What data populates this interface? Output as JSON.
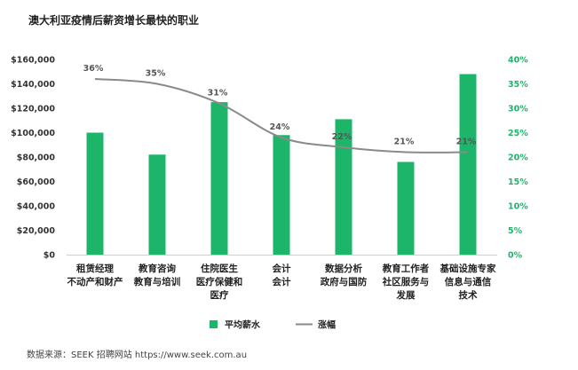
{
  "chart_data": {
    "type": "bar",
    "title": "澳大利亚疫情后薪资增长最快的职业",
    "categories": [
      [
        "租赁经理",
        "不动产和财产"
      ],
      [
        "教育咨询",
        "教育与培训"
      ],
      [
        "住院医生",
        "医疗保健和",
        "医疗"
      ],
      [
        "会计",
        "会计"
      ],
      [
        "数据分析",
        "政府与国防"
      ],
      [
        "教育工作者",
        "社区服务与",
        "发展"
      ],
      [
        "基础设施专家",
        "信息与通信",
        "技术"
      ]
    ],
    "series": [
      {
        "name": "平均薪水",
        "type": "bar",
        "axis": "left",
        "color": "#1db56a",
        "values": [
          100000,
          82000,
          125000,
          98000,
          111000,
          76000,
          148000
        ]
      },
      {
        "name": "涨幅",
        "type": "line",
        "axis": "right",
        "color": "#8a8a8a",
        "values": [
          36,
          35,
          31,
          24,
          22,
          21,
          21
        ],
        "labels": [
          "36%",
          "35%",
          "31%",
          "24%",
          "22%",
          "21%",
          "21%"
        ]
      }
    ],
    "y_left": {
      "range": [
        0,
        160000
      ],
      "ticks": [
        "$0",
        "$20,000",
        "$40,000",
        "$60,000",
        "$80,000",
        "$100,000",
        "$120,000",
        "$140,000",
        "$160,000"
      ]
    },
    "y_right": {
      "range": [
        0,
        40
      ],
      "color": "#1db56a",
      "ticks": [
        "0%",
        "5%",
        "10%",
        "15%",
        "20%",
        "25%",
        "30%",
        "35%",
        "40%"
      ]
    },
    "legend": {
      "position": "bottom",
      "items": [
        "平均薪水",
        "涨幅"
      ]
    }
  },
  "source_text": "数据来源：SEEK 招聘网站 https://www.seek.com.au"
}
